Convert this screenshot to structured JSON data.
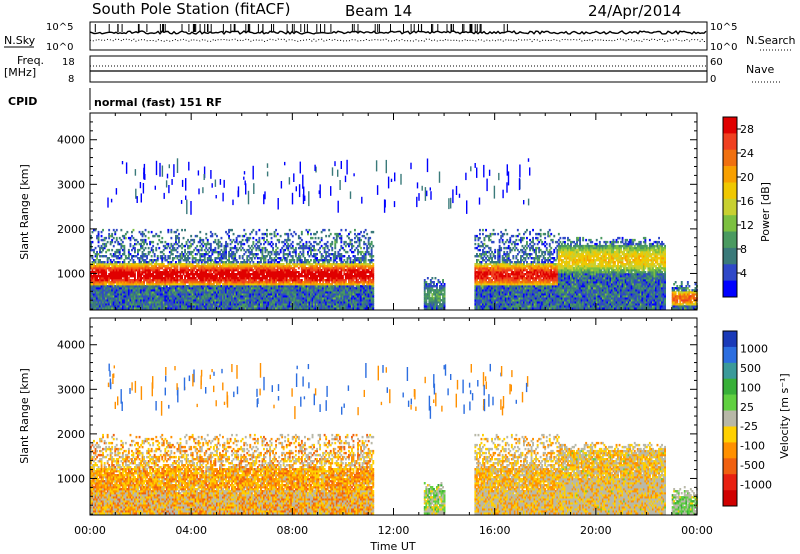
{
  "header": {
    "station": "South Pole Station (fitACF)",
    "beam": "Beam 14",
    "date": "24/Apr/2014"
  },
  "top_panels": {
    "nsky_label": "N.Sky",
    "nsearch_label": "N.Search",
    "noise_ticks": [
      "10^5",
      "10^0"
    ],
    "freq_label_line1": "Freq.",
    "freq_label_line2": "[MHz]",
    "freq_ticks": [
      "18",
      "8"
    ],
    "nave_label": "Nave",
    "nave_ticks": [
      "60",
      "0"
    ],
    "cpid_label": "CPID",
    "cpid_text": "normal (fast) 151 RF"
  },
  "colors": {
    "power_scale": [
      "#0000ff",
      "#2f48c8",
      "#3a7a7a",
      "#4a9a60",
      "#7cc040",
      "#c8d030",
      "#f0c800",
      "#f8a000",
      "#f07010",
      "#f04020",
      "#e00000"
    ],
    "velocity_scale": [
      "#1a3ab8",
      "#2c6ee0",
      "#3a9a9a",
      "#38b038",
      "#60d040",
      "#b8b8a8",
      "#ffd000",
      "#ff9000",
      "#f06010",
      "#e82010",
      "#d00000"
    ]
  },
  "chart_data": [
    {
      "type": "heatmap",
      "title": "",
      "xlabel": "",
      "ylabel": "Slant Range [km]",
      "xticks": [
        "00:00",
        "04:00",
        "08:00",
        "12:00",
        "16:00",
        "20:00",
        "00:00"
      ],
      "yticks": [
        1000,
        2000,
        3000,
        4000
      ],
      "xlim_hours": [
        0,
        24
      ],
      "ylim_km": [
        180,
        4600
      ],
      "colorbar": {
        "label": "Power [dB]",
        "ticks": [
          4,
          8,
          12,
          16,
          20,
          24,
          28
        ],
        "range": [
          0,
          30
        ]
      },
      "echo_regions": [
        {
          "start_h": 0.0,
          "end_h": 11.2,
          "core_km": [
            700,
            1200
          ],
          "top_km": 2000,
          "peak_db": 30
        },
        {
          "start_h": 13.2,
          "end_h": 14.0,
          "core_km": [
            250,
            700
          ],
          "top_km": 900,
          "peak_db": 10
        },
        {
          "start_h": 15.2,
          "end_h": 18.5,
          "core_km": [
            700,
            1200
          ],
          "top_km": 2000,
          "peak_db": 28
        },
        {
          "start_h": 18.5,
          "end_h": 22.7,
          "core_km": [
            1000,
            1600
          ],
          "top_km": 1800,
          "peak_db": 18
        },
        {
          "start_h": 23.0,
          "end_h": 24.0,
          "core_km": [
            250,
            600
          ],
          "top_km": 800,
          "peak_db": 24
        }
      ]
    },
    {
      "type": "heatmap",
      "title": "",
      "xlabel": "Time UT",
      "ylabel": "Slant Range [km]",
      "xticks": [
        "00:00",
        "04:00",
        "08:00",
        "12:00",
        "16:00",
        "20:00",
        "00:00"
      ],
      "yticks": [
        1000,
        2000,
        3000,
        4000
      ],
      "xlim_hours": [
        0,
        24
      ],
      "ylim_km": [
        180,
        4600
      ],
      "colorbar": {
        "label": "Velocity [m s⁻¹]",
        "ticks": [
          "1000",
          "500",
          "100",
          "25",
          "-25",
          "-100",
          "-500",
          "-1000"
        ],
        "range": [
          -1000,
          1000
        ]
      },
      "echo_regions": [
        {
          "start_h": 0.0,
          "end_h": 11.2,
          "core_km": [
            700,
            1200
          ],
          "top_km": 2000,
          "typical_velocity": -300
        },
        {
          "start_h": 13.2,
          "end_h": 14.0,
          "core_km": [
            250,
            700
          ],
          "top_km": 900,
          "typical_velocity": 50
        },
        {
          "start_h": 15.2,
          "end_h": 18.5,
          "core_km": [
            700,
            1200
          ],
          "top_km": 2000,
          "typical_velocity": -200
        },
        {
          "start_h": 18.5,
          "end_h": 22.7,
          "core_km": [
            1000,
            1600
          ],
          "top_km": 1800,
          "typical_velocity": -150
        },
        {
          "start_h": 23.0,
          "end_h": 24.0,
          "core_km": [
            250,
            600
          ],
          "top_km": 800,
          "typical_velocity": 100
        }
      ]
    }
  ]
}
